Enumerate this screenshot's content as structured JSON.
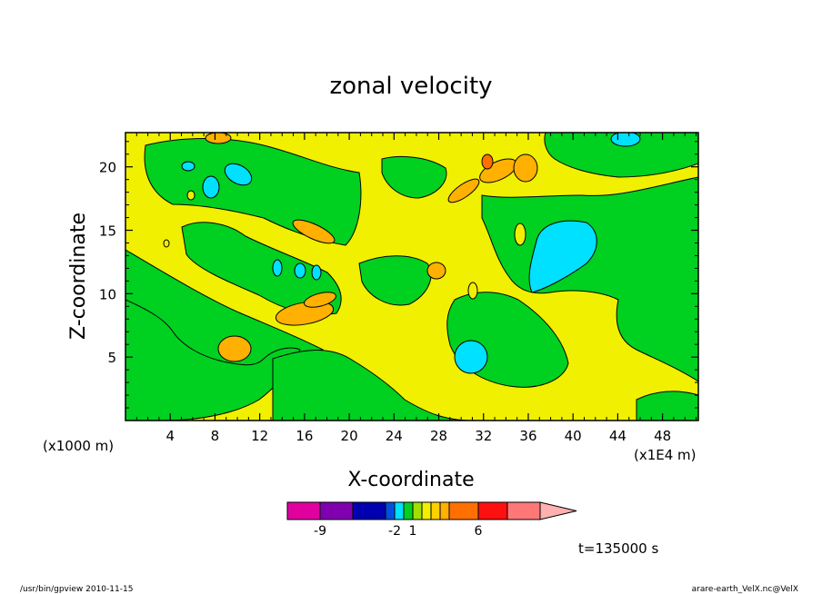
{
  "chart_data": {
    "type": "heatmap",
    "title": "zonal velocity",
    "xlabel": "X-coordinate",
    "ylabel": "Z-coordinate",
    "x_unit": "(x1E4 m)",
    "y_unit": "(x1000 m)",
    "x_ticks": [
      4,
      8,
      12,
      16,
      20,
      24,
      28,
      32,
      36,
      40,
      44,
      48
    ],
    "y_ticks": [
      5,
      10,
      15,
      20
    ],
    "xlim": [
      0,
      51.2
    ],
    "ylim": [
      0,
      22.7
    ],
    "colorbar": {
      "colors": [
        "#e000a0",
        "#8000b0",
        "#0000b0",
        "#0050e0",
        "#00e0ff",
        "#00d020",
        "#a0e000",
        "#f0f000",
        "#ffd000",
        "#ffb000",
        "#ff7000",
        "#ff1010",
        "#ff7878",
        "#ffb0b0"
      ],
      "tick_labels": [
        "-9",
        "-2",
        "1",
        "6"
      ]
    },
    "time_label": "t=135000 s"
  },
  "footer": {
    "left": "/usr/bin/gpview   2010-11-15",
    "right": "arare-earth_VelX.nc@VelX"
  }
}
